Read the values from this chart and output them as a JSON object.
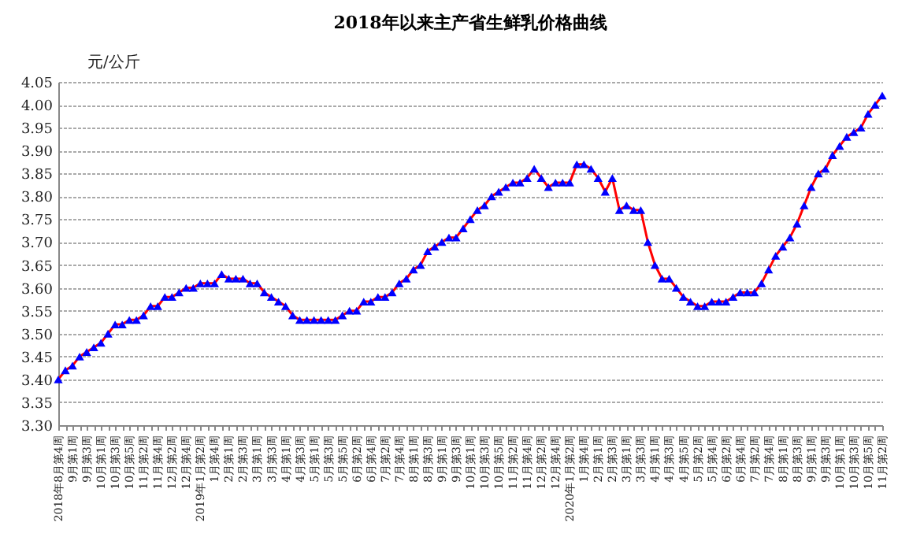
{
  "chart_data": {
    "type": "line",
    "title": "2018年以来主产省生鲜乳价格曲线",
    "ylabel": "元/公斤",
    "categories": [
      "2018年8月第4周",
      null,
      "9月第1周",
      null,
      "9月第3周",
      null,
      "10月第1周",
      null,
      "10月第3周",
      null,
      "10月第5周",
      null,
      "11月第2周",
      null,
      "11月第4周",
      null,
      "12月第2周",
      null,
      "12月第4周",
      null,
      "2019年1月第2周",
      null,
      "1月第4周",
      null,
      "2月第1周",
      null,
      "2月第3周",
      null,
      "3月第1周",
      null,
      "3月第3周",
      null,
      "4月第1周",
      null,
      "4月第3周",
      null,
      "5月第1周",
      null,
      "5月第3周",
      null,
      "5月第5周",
      null,
      "6月第2周",
      null,
      "6月第4周",
      null,
      "7月第2周",
      null,
      "7月第4周",
      null,
      "8月第1周",
      null,
      "8月第3周",
      null,
      "9月第1周",
      null,
      "9月第3周",
      null,
      "10月第1周",
      null,
      "10月第3周",
      null,
      "10月第5周",
      null,
      "11月第2周",
      null,
      "11月第4周",
      null,
      "12月第2周",
      null,
      "12月第4周",
      null,
      "2020年1月第2周",
      null,
      "1月第4周",
      null,
      "2月第1周",
      null,
      "2月第3周",
      null,
      "3月第1周",
      null,
      "3月第3周",
      null,
      "4月第1周",
      null,
      "4月第3周",
      null,
      "4月第5周",
      null,
      "5月第2周",
      null,
      "5月第4周",
      null,
      "6月第2周",
      null,
      "6月第4周",
      null,
      "7月第2周",
      null,
      "7月第4周",
      null,
      "8月第1周",
      null,
      "8月第3周",
      null,
      "9月第1周",
      null,
      "9月第3周",
      null,
      "10月第1周",
      null,
      "10月第3周",
      null,
      "10月第5周",
      null,
      "11月第2周"
    ],
    "series": [
      {
        "color": "#ff0000",
        "values": [
          3.4,
          3.42,
          3.43,
          3.45,
          3.46,
          3.47,
          3.48,
          3.5,
          3.52,
          3.52,
          3.53,
          3.53,
          3.54,
          3.56,
          3.56,
          3.58,
          3.58,
          3.59,
          3.6,
          3.6,
          3.61,
          3.61,
          3.61,
          3.63,
          3.62,
          3.62,
          3.62,
          3.61,
          3.61,
          3.59,
          3.58,
          3.57,
          3.56,
          3.54,
          3.53,
          3.53,
          3.53,
          3.53,
          3.53,
          3.53,
          3.54,
          3.55,
          3.55,
          3.57,
          3.57,
          3.58,
          3.58,
          3.59,
          3.61,
          3.62,
          3.64,
          3.65,
          3.68,
          3.69,
          3.7,
          3.71,
          3.71,
          3.73,
          3.75,
          3.77,
          3.78,
          3.8,
          3.81,
          3.82,
          3.83,
          3.83,
          3.84,
          3.86,
          3.84,
          3.82,
          3.83,
          3.83,
          3.83,
          3.87,
          3.87,
          3.86,
          3.84,
          3.81,
          3.84,
          3.77,
          3.78,
          3.77,
          3.77,
          3.7,
          3.65,
          3.62,
          3.62,
          3.6,
          3.58,
          3.57,
          3.56,
          3.56,
          3.57,
          3.57,
          3.57,
          3.58,
          3.59,
          3.59,
          3.59,
          3.61,
          3.64,
          3.67,
          3.69,
          3.71,
          3.74,
          3.78,
          3.82,
          3.85,
          3.86,
          3.89,
          3.91,
          3.93,
          3.94,
          3.95,
          3.98,
          4.0,
          4.02
        ],
        "colors": [
          "#0000ff",
          "#0000ff",
          "#0000ff",
          "#0000ff",
          "#0000ff",
          "#0000ff",
          "#0000ff",
          "#0000ff",
          "#0000ff",
          "#0000ff",
          "#0000ff",
          "#0000ff",
          "#0000ff",
          "#0000ff",
          "#0000ff",
          "#0000ff",
          "#0000ff",
          "#0000ff",
          "#0000ff",
          "#0000ff",
          "#0000ff",
          "#0000ff",
          "#0000ff",
          "#0000ff",
          "#0000ff",
          "#0000ff",
          "#0000ff",
          "#0000ff",
          "#0000ff",
          "#0000ff",
          "#0000ff",
          "#0000ff",
          "#0000ff",
          "#0000ff",
          "#0000ff",
          "#0000ff",
          "#0000ff",
          "#0000ff",
          "#0000ff",
          "#0000ff",
          "#0000ff",
          "#0000ff",
          "#0000ff",
          "#0000ff",
          "#0000ff",
          "#0000ff",
          "#0000ff",
          "#0000ff",
          "#0000ff",
          "#0000ff",
          "#0000ff",
          "#0000ff",
          "#0000ff",
          "#0000ff",
          "#0000ff",
          "#0000ff",
          "#0000ff",
          "#0000ff",
          "#0000ff",
          "#0000ff",
          "#0000ff",
          "#0000ff",
          "#0000ff",
          "#0000ff",
          "#0000ff",
          "#0000ff",
          "#0000ff",
          "#0000ff",
          "#0000ff",
          "#0000ff",
          "#0000ff",
          "#0000ff",
          "#0000ff",
          "#0000ff",
          "#0000ff",
          "#0000ff",
          "#0000ff",
          "#0000ff",
          "#0000ff",
          "#0000ff",
          "#0000ff",
          "#0000ff",
          "#0000ff",
          "#0000ff",
          "#0000ff",
          "#0000ff",
          "#0000ff",
          "#0000ff",
          "#0000ff",
          "#0000ff",
          "#0000ff",
          "#0000ff",
          "#0000ff",
          "#0000ff",
          "#0000ff",
          "#0000ff",
          "#0000ff",
          "#0000ff",
          "#0000ff",
          "#0000ff",
          "#0000ff",
          "#0000ff",
          "#0000ff",
          "#0000ff",
          "#0000ff",
          "#0000ff",
          "#0000ff",
          "#0000ff",
          "#0000ff",
          "#0000ff",
          "#0000ff",
          "#0000ff",
          "#0000ff",
          "#0000ff",
          "#0000ff",
          "#0000ff",
          "#0000ff"
        ]
      }
    ],
    "ylim": [
      3.3,
      4.05
    ],
    "yticks": [
      {
        "value": 3.3,
        "label": "3.30"
      },
      {
        "value": 3.35,
        "label": "3.35"
      },
      {
        "value": 3.4,
        "label": "3.40"
      },
      {
        "value": 3.45,
        "label": "3.45"
      },
      {
        "value": 3.5,
        "label": "3.50"
      },
      {
        "value": 3.55,
        "label": "3.55"
      },
      {
        "value": 3.6,
        "label": "3.60"
      },
      {
        "value": 3.65,
        "label": "3.65"
      },
      {
        "value": 3.7,
        "label": "3.70"
      },
      {
        "value": 3.75,
        "label": "3.75"
      },
      {
        "value": 3.8,
        "label": "3.80"
      },
      {
        "value": 3.85,
        "label": "3.85"
      },
      {
        "value": 3.9,
        "label": "3.90"
      },
      {
        "value": 3.95,
        "label": "3.95"
      },
      {
        "value": 4.0,
        "label": "4.00"
      },
      {
        "value": 4.05,
        "label": "4.05"
      }
    ],
    "grid": "y",
    "marker": "triangle",
    "line_style": "solid"
  }
}
